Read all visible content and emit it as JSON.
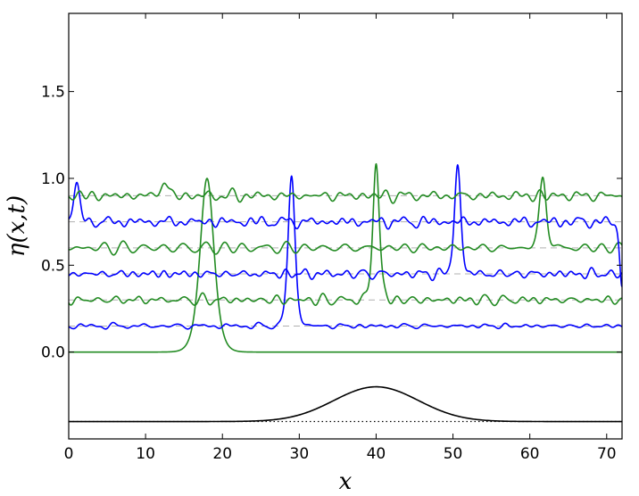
{
  "chart_data": {
    "type": "line",
    "title": "",
    "xlabel": "x",
    "ylabel": "η(x,t)",
    "xlim": [
      0,
      72
    ],
    "ylim": [
      -0.5,
      1.95
    ],
    "x_ticks": [
      0,
      10,
      20,
      30,
      40,
      50,
      60,
      70
    ],
    "x_tick_labels": [
      "0",
      "10",
      "20",
      "30",
      "40",
      "50",
      "60",
      "70"
    ],
    "y_ticks": [
      0.0,
      0.5,
      1.0,
      1.5
    ],
    "y_tick_labels": [
      "0.0",
      "0.5",
      "1.0",
      "1.5"
    ],
    "grid": false,
    "legend": "none",
    "colors": {
      "green": "#228b22",
      "blue": "#0000ff",
      "black": "#000000",
      "baseline_dash": "#b0b0b0"
    },
    "wave_profiles": [
      {
        "color": "green",
        "baseline": 0.0,
        "noise_amplitude": 0.0,
        "peaks": [
          {
            "x": 18.0,
            "height": 1.0,
            "width": 1.2
          }
        ]
      },
      {
        "color": "blue",
        "baseline": 0.15,
        "noise_amplitude": 0.015,
        "peaks": [
          {
            "x": 29.0,
            "height": 1.01,
            "width": 0.6
          }
        ]
      },
      {
        "color": "green",
        "baseline": 0.3,
        "noise_amplitude": 0.03,
        "peaks": [
          {
            "x": 40.0,
            "height": 1.1,
            "width": 0.55
          }
        ]
      },
      {
        "color": "blue",
        "baseline": 0.45,
        "noise_amplitude": 0.03,
        "peaks": [
          {
            "x": 50.6,
            "height": 1.06,
            "width": 0.55
          }
        ]
      },
      {
        "color": "green",
        "baseline": 0.6,
        "noise_amplitude": 0.03,
        "peaks": [
          {
            "x": 61.7,
            "height": 1.0,
            "width": 0.6
          }
        ]
      },
      {
        "color": "blue",
        "baseline": 0.75,
        "noise_amplitude": 0.03,
        "peaks": [
          {
            "x": 1.0,
            "height": 0.96,
            "width": 0.55
          },
          {
            "x": 72.0,
            "height": 0.38,
            "width": 0.4
          }
        ]
      },
      {
        "color": "green",
        "baseline": 0.9,
        "noise_amplitude": 0.03,
        "peaks": [
          {
            "x": 12.4,
            "height": 0.98,
            "width": 0.6
          }
        ]
      }
    ],
    "bottom_profile": {
      "color": "black",
      "baseline": -0.4,
      "bump": {
        "x": 40.0,
        "height": 0.2,
        "width": 5.5
      },
      "reference_line": {
        "y": -0.4,
        "style": "dotted"
      }
    }
  }
}
